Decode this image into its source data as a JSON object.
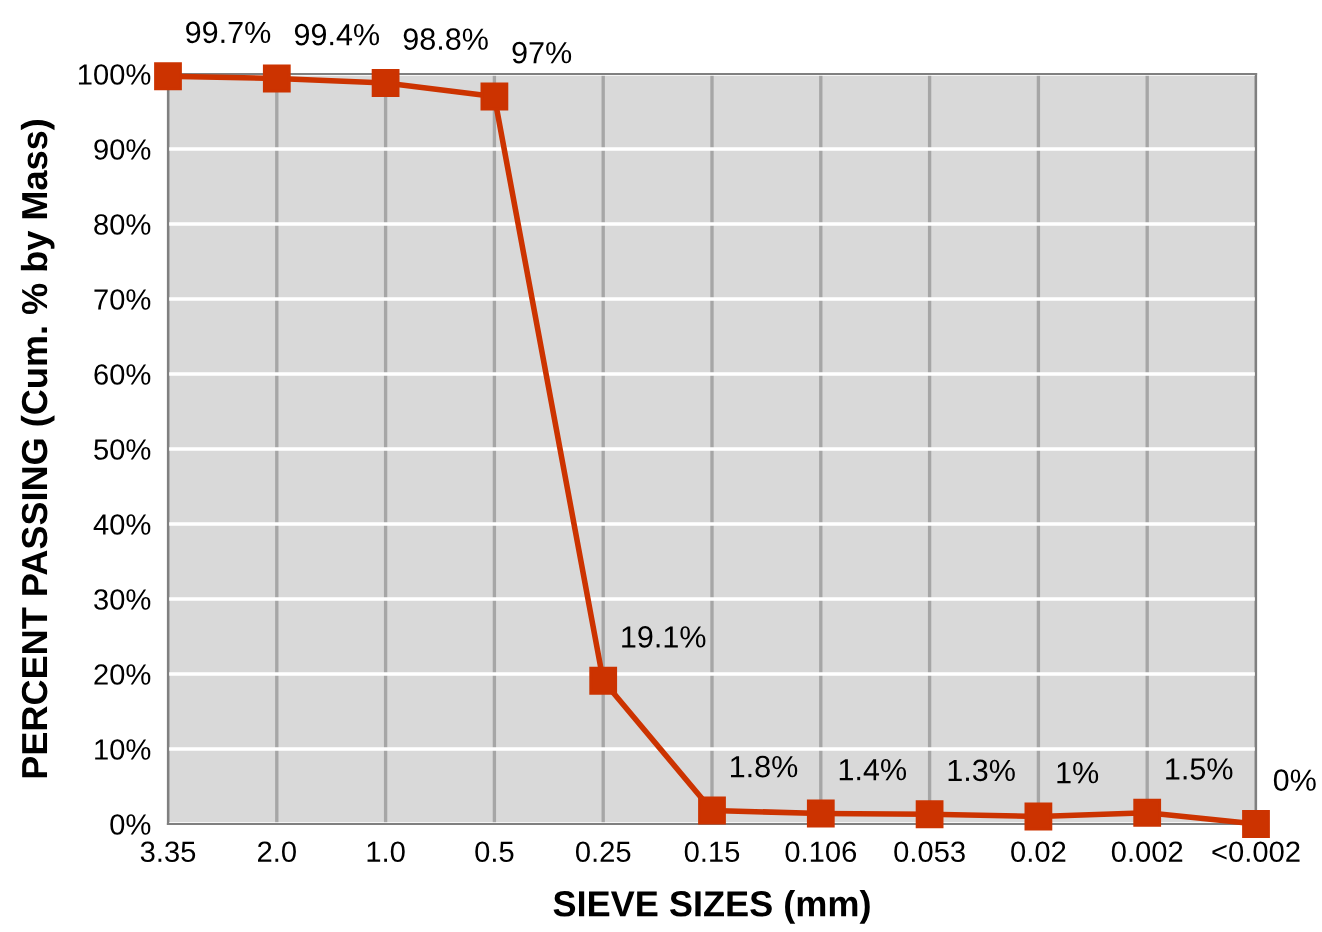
{
  "chart_data": {
    "type": "line",
    "xlabel": "SIEVE SIZES (mm)",
    "ylabel": "PERCENT PASSING (Cum. % by Mass)",
    "categories": [
      "3.35",
      "2.0",
      "1.0",
      "0.5",
      "0.25",
      "0.15",
      "0.106",
      "0.053",
      "0.02",
      "0.002",
      "<0.002"
    ],
    "series": [
      {
        "color": "#cc3300",
        "values": [
          99.7,
          99.4,
          98.8,
          97,
          19.1,
          1.8,
          1.4,
          1.3,
          1,
          1.5,
          0
        ],
        "value_labels": [
          "99.7%",
          "99.4%",
          "98.8%",
          "97%",
          "19.1%",
          "1.8%",
          "1.4%",
          "1.3%",
          "1%",
          "1.5%",
          "0%"
        ]
      }
    ],
    "ylim": [
      0,
      100
    ],
    "yticks": [
      {
        "value": 0,
        "label": "0%"
      },
      {
        "value": 10,
        "label": "10%"
      },
      {
        "value": 20,
        "label": "20%"
      },
      {
        "value": 30,
        "label": "30%"
      },
      {
        "value": 40,
        "label": "40%"
      },
      {
        "value": 50,
        "label": "50%"
      },
      {
        "value": 60,
        "label": "60%"
      },
      {
        "value": 70,
        "label": "70%"
      },
      {
        "value": 80,
        "label": "80%"
      },
      {
        "value": 90,
        "label": "90%"
      },
      {
        "value": 100,
        "label": "100%"
      }
    ],
    "grid": true,
    "marker": "square",
    "line_style": "solid",
    "legend": false
  }
}
